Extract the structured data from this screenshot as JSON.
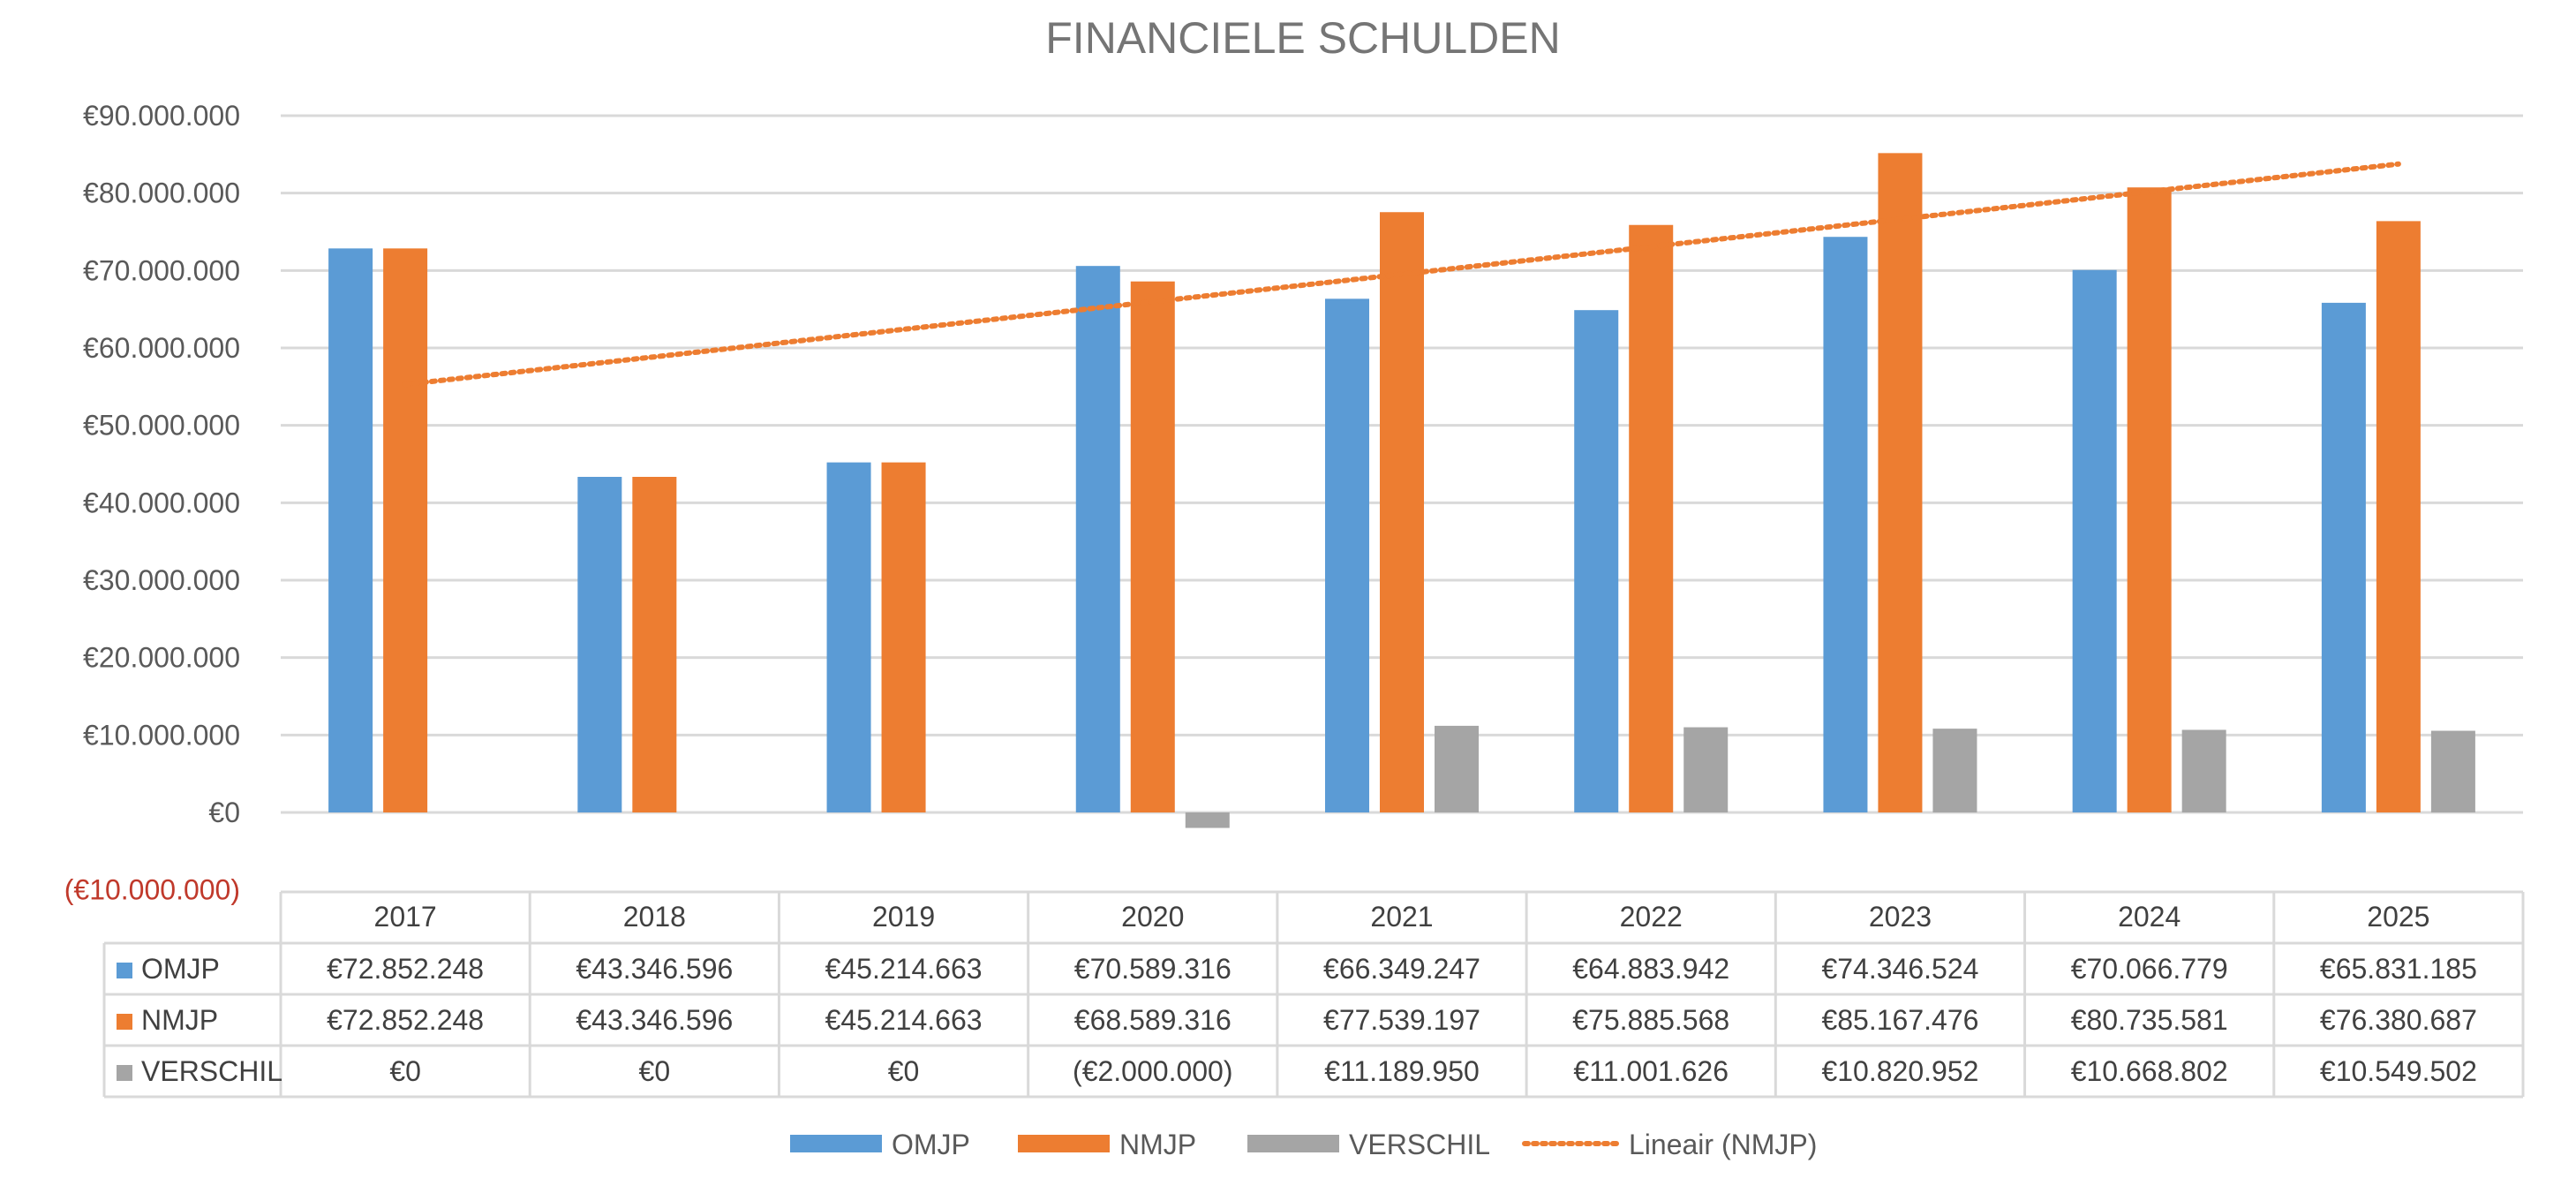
{
  "chart_data": {
    "type": "bar",
    "title": "FINANCIELE SCHULDEN",
    "categories": [
      "2017",
      "2018",
      "2019",
      "2020",
      "2021",
      "2022",
      "2023",
      "2024",
      "2025"
    ],
    "series": [
      {
        "name": "OMJP",
        "color": "#5b9bd5",
        "values": [
          72852248,
          43346596,
          45214663,
          70589316,
          66349247,
          64883942,
          74346524,
          70066779,
          65831185
        ],
        "labels": [
          "€72.852.248",
          "€43.346.596",
          "€45.214.663",
          "€70.589.316",
          "€66.349.247",
          "€64.883.942",
          "€74.346.524",
          "€70.066.779",
          "€65.831.185"
        ]
      },
      {
        "name": "NMJP",
        "color": "#ed7d31",
        "values": [
          72852248,
          43346596,
          45214663,
          68589316,
          77539197,
          75885568,
          85167476,
          80735581,
          76380687
        ],
        "labels": [
          "€72.852.248",
          "€43.346.596",
          "€45.214.663",
          "€68.589.316",
          "€77.539.197",
          "€75.885.568",
          "€85.167.476",
          "€80.735.581",
          "€76.380.687"
        ]
      },
      {
        "name": "VERSCHIL",
        "color": "#a5a5a5",
        "values": [
          0,
          0,
          0,
          -2000000,
          11189950,
          11001626,
          10820952,
          10668802,
          10549502
        ],
        "labels": [
          "€0",
          "€0",
          "€0",
          "(€2.000.000)",
          "€11.189.950",
          "€11.001.626",
          "€10.820.952",
          "€10.668.802",
          "€10.549.502"
        ]
      }
    ],
    "trendline": {
      "name": "Lineair (NMJP)",
      "series": "NMJP",
      "style": "dotted",
      "color": "#ed7d31"
    },
    "yticks": [
      90000000,
      80000000,
      70000000,
      60000000,
      50000000,
      40000000,
      30000000,
      20000000,
      10000000,
      0,
      -10000000
    ],
    "ytick_labels": [
      "€90.000.000",
      "€80.000.000",
      "€70.000.000",
      "€60.000.000",
      "€50.000.000",
      "€40.000.000",
      "€30.000.000",
      "€20.000.000",
      "€10.000.000",
      "€0",
      "(€10.000.000)"
    ],
    "ylim": [
      -10000000,
      90000000
    ],
    "grid": true,
    "legend_position": "bottom",
    "data_table": true
  }
}
